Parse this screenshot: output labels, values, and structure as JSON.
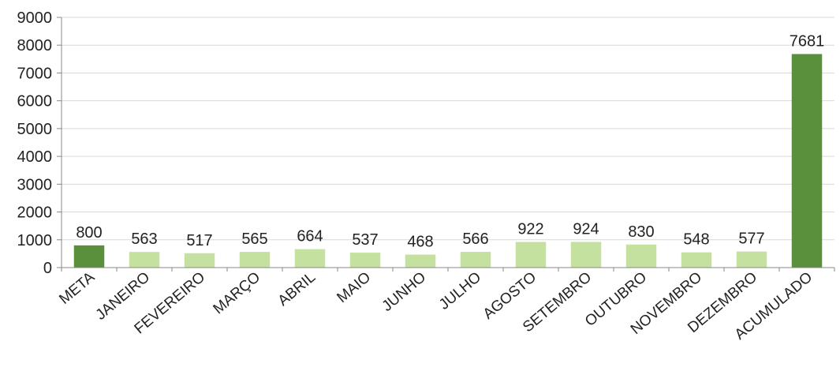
{
  "chart_data": {
    "type": "bar",
    "title": "",
    "xlabel": "",
    "ylabel": "",
    "categories": [
      "META",
      "JANEIRO",
      "FEVEREIRO",
      "MARÇO",
      "ABRIL",
      "MAIO",
      "JUNHO",
      "JULHO",
      "AGOSTO",
      "SETEMBRO",
      "OUTUBRO",
      "NOVEMBRO",
      "DEZEMBRO",
      "ACUMULADO"
    ],
    "values": [
      800,
      563,
      517,
      565,
      664,
      537,
      468,
      566,
      922,
      924,
      830,
      548,
      577,
      7681
    ],
    "bar_colors": [
      "#5a8f3c",
      "#c5e1a0",
      "#c5e1a0",
      "#c5e1a0",
      "#c5e1a0",
      "#c5e1a0",
      "#c5e1a0",
      "#c5e1a0",
      "#c5e1a0",
      "#c5e1a0",
      "#c5e1a0",
      "#c5e1a0",
      "#c5e1a0",
      "#5a8f3c"
    ],
    "ylim": [
      0,
      9000
    ],
    "yticks": [
      0,
      1000,
      2000,
      3000,
      4000,
      5000,
      6000,
      7000,
      8000,
      9000
    ],
    "grid": true,
    "data_labels": true,
    "legend": "none"
  }
}
